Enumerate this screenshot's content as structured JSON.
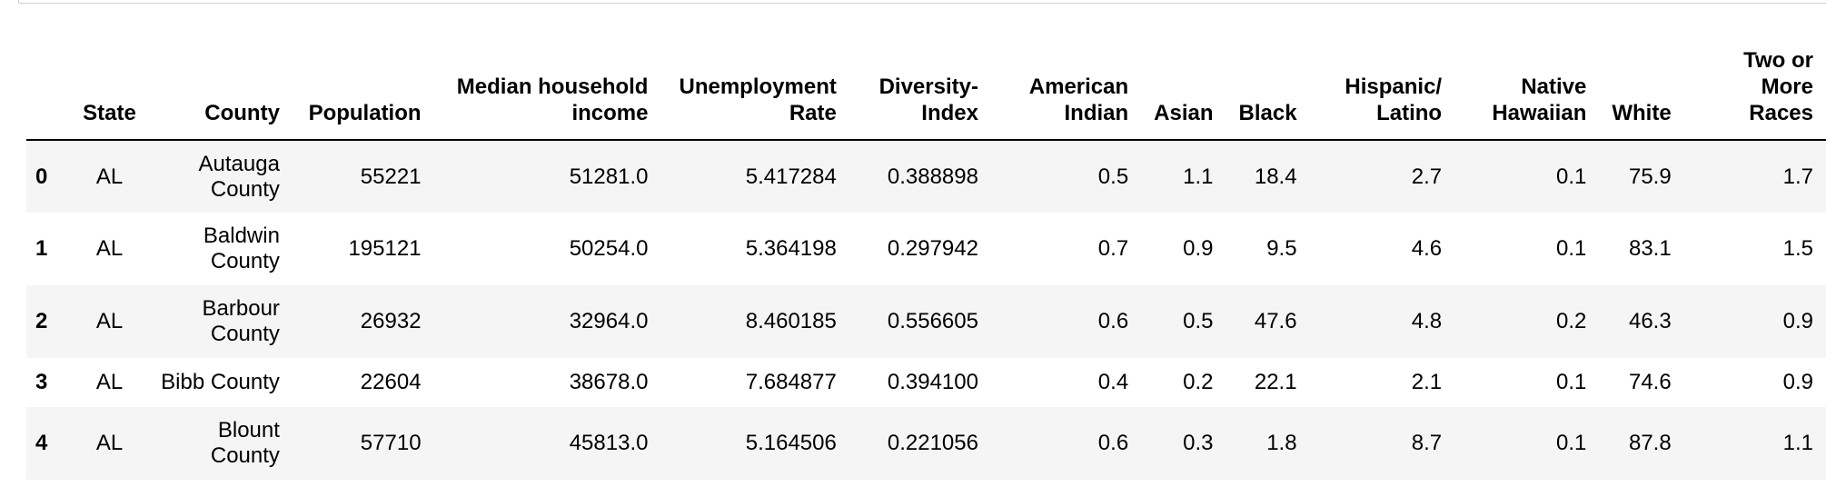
{
  "table": {
    "index_header": "",
    "columns": [
      "State",
      "County",
      "Population",
      "Median household income",
      "Unemployment Rate",
      "Diversity-Index",
      "American Indian",
      "Asian",
      "Black",
      "Hispanic/ Latino",
      "Native Hawaiian",
      "White",
      "Two or More Races"
    ],
    "rows": [
      {
        "index": "0",
        "cells": [
          "AL",
          "Autauga County",
          "55221",
          "51281.0",
          "5.417284",
          "0.388898",
          "0.5",
          "1.1",
          "18.4",
          "2.7",
          "0.1",
          "75.9",
          "1.7"
        ]
      },
      {
        "index": "1",
        "cells": [
          "AL",
          "Baldwin County",
          "195121",
          "50254.0",
          "5.364198",
          "0.297942",
          "0.7",
          "0.9",
          "9.5",
          "4.6",
          "0.1",
          "83.1",
          "1.5"
        ]
      },
      {
        "index": "2",
        "cells": [
          "AL",
          "Barbour County",
          "26932",
          "32964.0",
          "8.460185",
          "0.556605",
          "0.6",
          "0.5",
          "47.6",
          "4.8",
          "0.2",
          "46.3",
          "0.9"
        ]
      },
      {
        "index": "3",
        "cells": [
          "AL",
          "Bibb County",
          "22604",
          "38678.0",
          "7.684877",
          "0.394100",
          "0.4",
          "0.2",
          "22.1",
          "2.1",
          "0.1",
          "74.6",
          "0.9"
        ]
      },
      {
        "index": "4",
        "cells": [
          "AL",
          "Blount County",
          "57710",
          "45813.0",
          "5.164506",
          "0.221056",
          "0.6",
          "0.3",
          "1.8",
          "8.7",
          "0.1",
          "87.8",
          "1.1"
        ]
      }
    ]
  },
  "colors": {
    "header_rule": "#000000",
    "stripe": "#f5f5f5",
    "background": "#ffffff",
    "cell_border": "#cfcfcf"
  }
}
